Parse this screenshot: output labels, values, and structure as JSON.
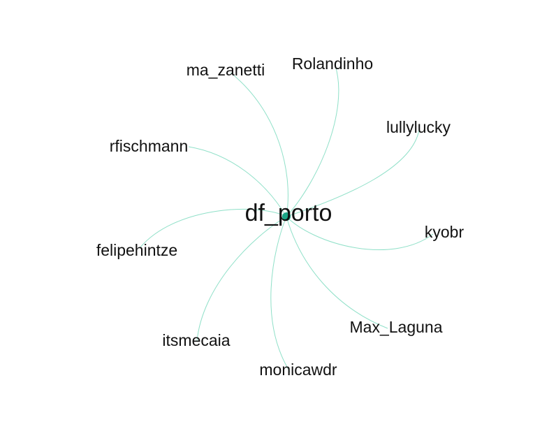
{
  "graph": {
    "hub": {
      "label": "df_porto"
    },
    "nodes": [
      {
        "id": "ma_zanetti",
        "label": "ma_zanetti"
      },
      {
        "id": "rolandinho",
        "label": "Rolandinho"
      },
      {
        "id": "lullylucky",
        "label": "lullylucky"
      },
      {
        "id": "rfischmann",
        "label": "rfischmann"
      },
      {
        "id": "kyobr",
        "label": "kyobr"
      },
      {
        "id": "felipehintze",
        "label": "felipehintze"
      },
      {
        "id": "max_laguna",
        "label": "Max_Laguna"
      },
      {
        "id": "itsmecaia",
        "label": "itsmecaia"
      },
      {
        "id": "monicawdr",
        "label": "monicawdr"
      }
    ],
    "edge_color": "#8fe0c8",
    "hub_color": "#1aa585"
  }
}
